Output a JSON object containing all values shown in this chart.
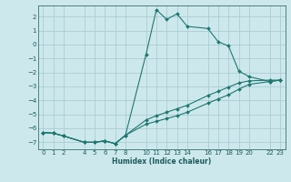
{
  "xlabel": "Humidex (Indice chaleur)",
  "background_color": "#cde8ec",
  "grid_color": "#aacdd4",
  "line_color": "#1e7870",
  "xlim": [
    -0.5,
    23.5
  ],
  "ylim": [
    -7.5,
    2.8
  ],
  "xticks": [
    0,
    1,
    2,
    4,
    5,
    6,
    7,
    8,
    10,
    11,
    12,
    13,
    14,
    16,
    17,
    18,
    19,
    20,
    22,
    23
  ],
  "yticks": [
    2,
    1,
    0,
    -1,
    -2,
    -3,
    -4,
    -5,
    -6,
    -7
  ],
  "line1_x": [
    0,
    1,
    2,
    4,
    5,
    6,
    7,
    8,
    10,
    11,
    12,
    13,
    14,
    16,
    17,
    18,
    19,
    20,
    22,
    23
  ],
  "line1_y": [
    -6.3,
    -6.35,
    -6.55,
    -7.0,
    -7.0,
    -6.9,
    -7.1,
    -6.5,
    -0.7,
    2.5,
    1.8,
    2.2,
    1.3,
    1.15,
    0.2,
    -0.1,
    -1.9,
    -2.3,
    -2.65,
    -2.55
  ],
  "line2_x": [
    0,
    1,
    2,
    4,
    5,
    6,
    7,
    8,
    10,
    11,
    12,
    13,
    14,
    16,
    17,
    18,
    19,
    20,
    22,
    23
  ],
  "line2_y": [
    -6.3,
    -6.35,
    -6.55,
    -7.0,
    -7.0,
    -6.9,
    -7.1,
    -6.5,
    -5.7,
    -5.5,
    -5.3,
    -5.1,
    -4.85,
    -4.2,
    -3.9,
    -3.6,
    -3.2,
    -2.85,
    -2.65,
    -2.55
  ],
  "line3_x": [
    0,
    1,
    2,
    4,
    5,
    6,
    7,
    8,
    10,
    11,
    12,
    13,
    14,
    16,
    17,
    18,
    19,
    20,
    22,
    23
  ],
  "line3_y": [
    -6.3,
    -6.35,
    -6.55,
    -7.0,
    -7.0,
    -6.9,
    -7.1,
    -6.5,
    -5.4,
    -5.1,
    -4.85,
    -4.6,
    -4.35,
    -3.65,
    -3.35,
    -3.05,
    -2.75,
    -2.6,
    -2.55,
    -2.55
  ]
}
